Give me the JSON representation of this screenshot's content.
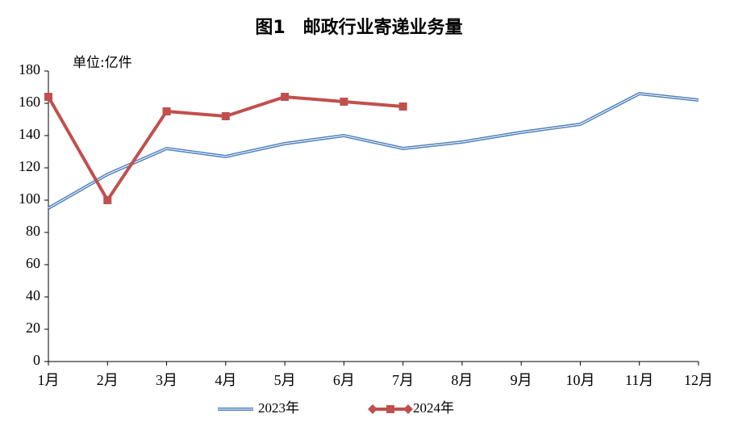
{
  "chart_data": {
    "type": "line",
    "title": "图1　邮政行业寄递业务量",
    "unit_label": "单位:亿件",
    "categories": [
      "1月",
      "2月",
      "3月",
      "4月",
      "5月",
      "6月",
      "7月",
      "8月",
      "9月",
      "10月",
      "11月",
      "12月"
    ],
    "series": [
      {
        "name": "2023年",
        "color": "#4f81bd",
        "values": [
          95,
          116,
          132,
          127,
          135,
          140,
          132,
          136,
          142,
          147,
          166,
          162
        ]
      },
      {
        "name": "2024年",
        "color": "#c0504d",
        "values": [
          164,
          100,
          155,
          152,
          164,
          161,
          158,
          null,
          null,
          null,
          null,
          null
        ]
      }
    ],
    "ylim": [
      0,
      180
    ],
    "yticks": [
      0,
      20,
      40,
      60,
      80,
      100,
      120,
      140,
      160,
      180
    ],
    "grid": false,
    "legend": "bottom"
  }
}
